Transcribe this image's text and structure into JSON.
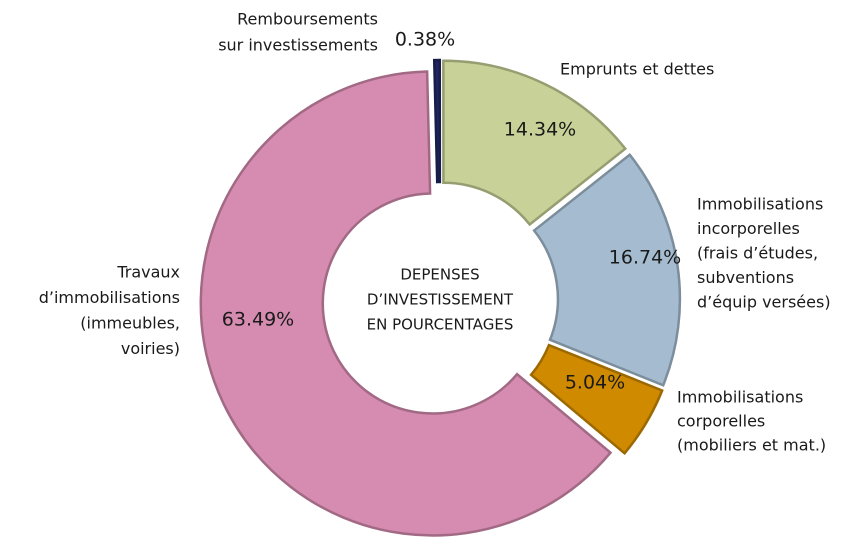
{
  "chart_data": {
    "type": "donut",
    "center_label": [
      "DEPENSES",
      "D’INVESTISSEMENT",
      "EN POURCENTAGES"
    ],
    "categories": [
      [
        "Remboursements",
        "sur investissements"
      ],
      [
        "Emprunts et dettes"
      ],
      [
        "Immobilisations",
        "incorporelles",
        "(frais d’études,",
        "subventions",
        "d’équip versées)"
      ],
      [
        "Immobilisations",
        "corporelles",
        "(mobiliers et mat.)"
      ],
      [
        "Travaux",
        "d’immobilisations",
        "(immeubles,",
        "voiries)"
      ]
    ],
    "values": [
      0.38,
      14.34,
      16.74,
      5.04,
      63.49
    ],
    "value_labels": [
      "0.38%",
      "14.34%",
      "16.74%",
      "5.04%",
      "63.49%"
    ],
    "colors": [
      "#1f2560",
      "#c8d197",
      "#a5bcd0",
      "#d08a00",
      "#d68cb0"
    ]
  }
}
